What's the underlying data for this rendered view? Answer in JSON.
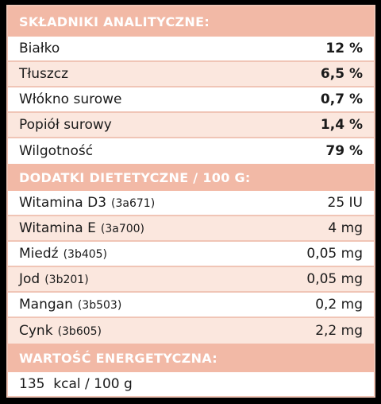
{
  "sections": {
    "analytical": {
      "title": "SKŁADNIKI ANALITYCZNE:",
      "rows": [
        {
          "label": "Białko",
          "value": "12 %"
        },
        {
          "label": "Tłuszcz",
          "value": "6,5 %"
        },
        {
          "label": "Włókno surowe",
          "value": "0,7 %"
        },
        {
          "label": "Popiół surowy",
          "value": "1,4 %"
        },
        {
          "label": "Wilgotność",
          "value": "79 %"
        }
      ]
    },
    "additives": {
      "title": "DODATKI DIETETYCZNE / 100 G:",
      "rows": [
        {
          "label": "Witamina D3",
          "code": "(3a671)",
          "value": "25 IU"
        },
        {
          "label": "Witamina E",
          "code": "(3a700)",
          "value": "4 mg"
        },
        {
          "label": "Miedź",
          "code": "(3b405)",
          "value": "0,05 mg"
        },
        {
          "label": "Jod",
          "code": "(3b201)",
          "value": "0,05 mg"
        },
        {
          "label": "Mangan",
          "code": "(3b503)",
          "value": "0,2 mg"
        },
        {
          "label": "Cynk",
          "code": "(3b605)",
          "value": "2,2 mg"
        }
      ]
    },
    "energy": {
      "title": "WARTOŚĆ ENERGETYCZNA:",
      "value": "135  kcal / 100 g"
    }
  }
}
